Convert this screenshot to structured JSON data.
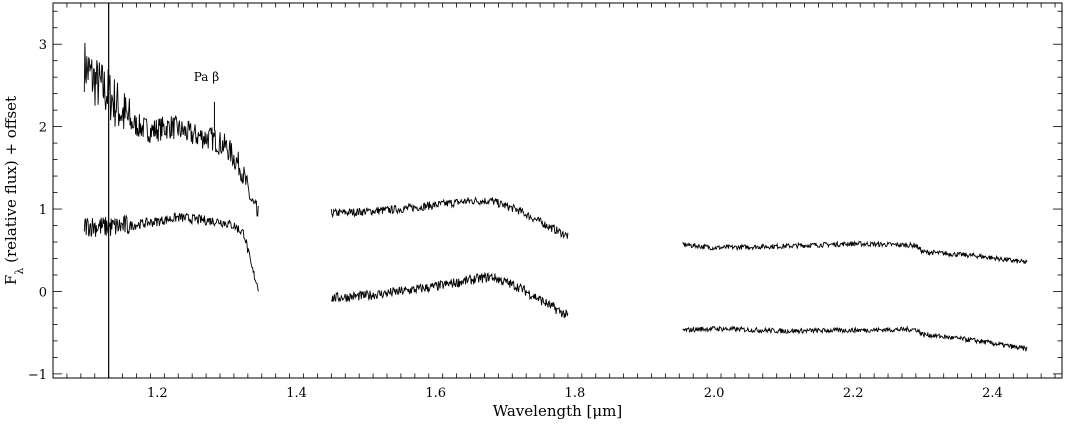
{
  "chart_data": {
    "type": "line",
    "xlabel": "Wavelength [μm]",
    "ylabel_main": "F",
    "ylabel_sub": "λ",
    "ylabel_rest": " (relative flux) + offset",
    "xlim": [
      1.05,
      2.5
    ],
    "ylim": [
      -1.05,
      3.5
    ],
    "x_ticks": [
      1.2,
      1.4,
      1.6,
      1.8,
      2.0,
      2.2,
      2.4
    ],
    "x_tick_labels": [
      "1.2",
      "1.4",
      "1.6",
      "1.8",
      "2.0",
      "2.2",
      "2.4"
    ],
    "x_minor_step": 0.02,
    "y_ticks": [
      -1,
      0,
      1,
      2,
      3
    ],
    "y_tick_labels": [
      "−1",
      "0",
      "1",
      "2",
      "3"
    ],
    "y_minor_step": 0.2,
    "grid": false,
    "annotations": [
      {
        "text": "Pa β",
        "x": 1.282,
        "y": 2.3
      }
    ],
    "series": [
      {
        "segments": [
          {
            "x": [
              1.095,
              1.11,
              1.13,
              1.16,
              1.19,
              1.22,
              1.25,
              1.28,
              1.3,
              1.32,
              1.335,
              1.345
            ],
            "y": [
              2.75,
              2.55,
              2.4,
              2.05,
              1.95,
              2.0,
              1.9,
              1.85,
              1.75,
              1.5,
              1.1,
              0.9
            ],
            "noise": 0.15
          },
          {
            "x": [
              1.45,
              1.5,
              1.55,
              1.6,
              1.65,
              1.68,
              1.72,
              1.76,
              1.79
            ],
            "y": [
              0.95,
              0.97,
              1.0,
              1.05,
              1.1,
              1.1,
              0.98,
              0.8,
              0.67
            ],
            "noise": 0.05
          },
          {
            "x": [
              1.955,
              2.0,
              2.1,
              2.2,
              2.29,
              2.3,
              2.38,
              2.45
            ],
            "y": [
              0.57,
              0.53,
              0.55,
              0.58,
              0.56,
              0.48,
              0.43,
              0.35
            ],
            "noise": 0.03
          }
        ],
        "spike": {
          "x": 1.282,
          "y0": 1.95,
          "y1": 2.3
        }
      },
      {
        "segments": [
          {
            "x": [
              1.095,
              1.13,
              1.16,
              1.2,
              1.23,
              1.26,
              1.29,
              1.31,
              1.325,
              1.335,
              1.345
            ],
            "y": [
              0.8,
              0.78,
              0.8,
              0.85,
              0.9,
              0.87,
              0.85,
              0.8,
              0.7,
              0.3,
              0.05
            ],
            "noise": 0.06
          },
          {
            "x": [
              1.45,
              1.5,
              1.55,
              1.6,
              1.65,
              1.68,
              1.72,
              1.76,
              1.79
            ],
            "y": [
              -0.08,
              -0.05,
              0.0,
              0.06,
              0.14,
              0.18,
              0.05,
              -0.15,
              -0.3
            ],
            "noise": 0.06
          },
          {
            "x": [
              1.955,
              2.0,
              2.1,
              2.2,
              2.29,
              2.3,
              2.38,
              2.45
            ],
            "y": [
              -0.47,
              -0.45,
              -0.48,
              -0.47,
              -0.46,
              -0.52,
              -0.6,
              -0.7
            ],
            "noise": 0.03
          }
        ],
        "absorption": {
          "x": 1.13,
          "y_top": 3.5,
          "y_bottom": -1.05
        }
      }
    ]
  }
}
